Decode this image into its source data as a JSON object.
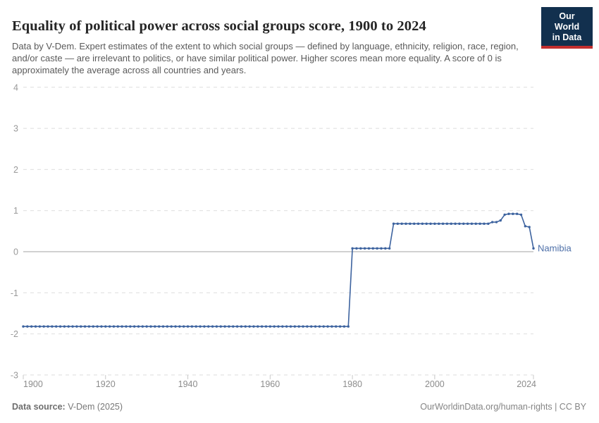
{
  "header": {
    "title": "Equality of political power across social groups score, 1900 to 2024",
    "subtitle": "Data by V-Dem. Expert estimates of the extent to which social groups — defined by language, ethnicity, religion, race, region, and/or caste — are irrelevant to politics, or have similar political power. Higher scores mean more equality. A score of 0 is approximately the average across all countries and years.",
    "logo": {
      "line1": "Our World",
      "line2": "in Data",
      "bg_color": "#12304e",
      "accent_color": "#c22e2e"
    }
  },
  "chart_data": {
    "type": "line",
    "title": "Equality of political power across social groups score, 1900 to 2024",
    "xlabel": "",
    "ylabel": "",
    "x_start": 1900,
    "x_end": 2024,
    "x_step": 1,
    "x_ticks": [
      1900,
      1920,
      1940,
      1960,
      1980,
      2000,
      2024
    ],
    "y_ticks": [
      4,
      3,
      2,
      1,
      0,
      -1,
      -2,
      -3
    ],
    "ylim": [
      -3,
      4
    ],
    "grid": "horizontal-dashed",
    "zero_line": true,
    "legend_position": "end-of-line-label",
    "series": [
      {
        "name": "Namibia",
        "color": "#3d639f",
        "label_color": "#4d6fa8",
        "values": [
          -1.82,
          -1.82,
          -1.82,
          -1.82,
          -1.82,
          -1.82,
          -1.82,
          -1.82,
          -1.82,
          -1.82,
          -1.82,
          -1.82,
          -1.82,
          -1.82,
          -1.82,
          -1.82,
          -1.82,
          -1.82,
          -1.82,
          -1.82,
          -1.82,
          -1.82,
          -1.82,
          -1.82,
          -1.82,
          -1.82,
          -1.82,
          -1.82,
          -1.82,
          -1.82,
          -1.82,
          -1.82,
          -1.82,
          -1.82,
          -1.82,
          -1.82,
          -1.82,
          -1.82,
          -1.82,
          -1.82,
          -1.82,
          -1.82,
          -1.82,
          -1.82,
          -1.82,
          -1.82,
          -1.82,
          -1.82,
          -1.82,
          -1.82,
          -1.82,
          -1.82,
          -1.82,
          -1.82,
          -1.82,
          -1.82,
          -1.82,
          -1.82,
          -1.82,
          -1.82,
          -1.82,
          -1.82,
          -1.82,
          -1.82,
          -1.82,
          -1.82,
          -1.82,
          -1.82,
          -1.82,
          -1.82,
          -1.82,
          -1.82,
          -1.82,
          -1.82,
          -1.82,
          -1.82,
          -1.82,
          -1.82,
          -1.82,
          -1.82,
          0.08,
          0.08,
          0.08,
          0.08,
          0.08,
          0.08,
          0.08,
          0.08,
          0.08,
          0.08,
          0.68,
          0.68,
          0.68,
          0.68,
          0.68,
          0.68,
          0.68,
          0.68,
          0.68,
          0.68,
          0.68,
          0.68,
          0.68,
          0.68,
          0.68,
          0.68,
          0.68,
          0.68,
          0.68,
          0.68,
          0.68,
          0.68,
          0.68,
          0.68,
          0.72,
          0.72,
          0.76,
          0.9,
          0.92,
          0.92,
          0.92,
          0.9,
          0.62,
          0.6,
          0.08
        ]
      }
    ]
  },
  "footer": {
    "datasource_label": "Data source:",
    "datasource_value": "V-Dem (2025)",
    "link": "OurWorldinData.org/human-rights | CC BY"
  }
}
